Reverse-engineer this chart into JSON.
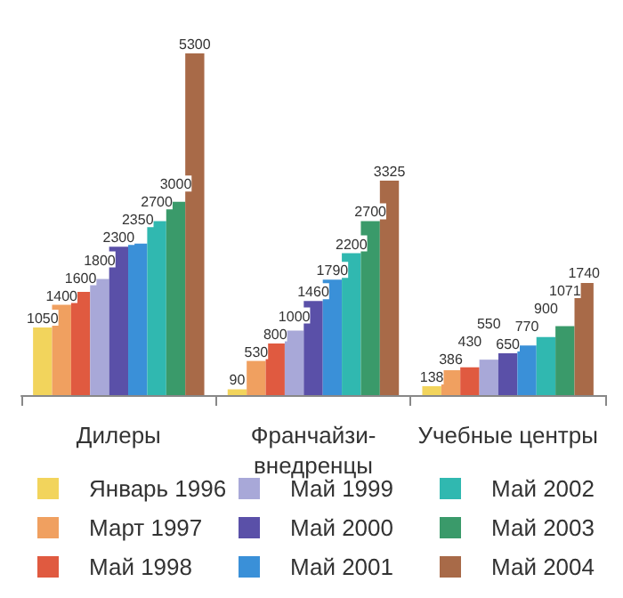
{
  "chart_data": {
    "type": "bar",
    "categories": [
      "Дилеры",
      "Франчайзи-внедренцы",
      "Учебные центры"
    ],
    "series": [
      {
        "name": "Январь 1996",
        "color": "#f2d45c",
        "values": [
          1050,
          90,
          138
        ]
      },
      {
        "name": "Март 1997",
        "color": "#f0a060",
        "values": [
          1400,
          530,
          386
        ]
      },
      {
        "name": "Май 1998",
        "color": "#e05a40",
        "values": [
          1600,
          800,
          430
        ]
      },
      {
        "name": "Май 1999",
        "color": "#a8a8d8",
        "values": [
          1800,
          1000,
          550
        ]
      },
      {
        "name": "Май 2000",
        "color": "#5a50a8",
        "values": [
          2300,
          1460,
          650
        ]
      },
      {
        "name": "Май 2001",
        "color": "#3a90d8",
        "values": [
          2350,
          1790,
          770
        ]
      },
      {
        "name": "Май 2002",
        "color": "#30b8b0",
        "values": [
          2700,
          2200,
          900
        ]
      },
      {
        "name": "Май 2003",
        "color": "#3a9a6a",
        "values": [
          3000,
          2700,
          1071
        ]
      },
      {
        "name": "Май 2004",
        "color": "#a86a48",
        "values": [
          5300,
          3325,
          1740
        ]
      }
    ],
    "data_labels": true,
    "legend": "bottom"
  }
}
